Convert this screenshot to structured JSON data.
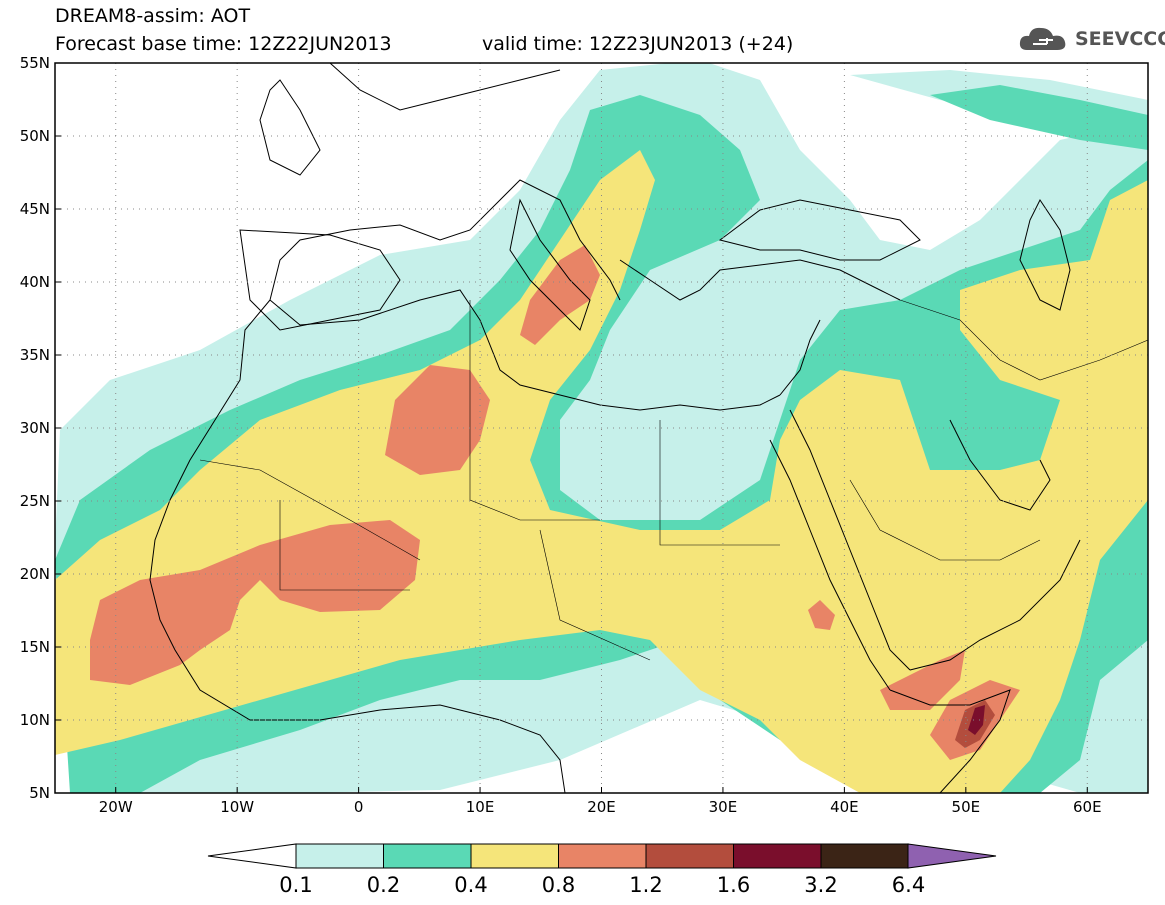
{
  "header": {
    "title": "DREAM8-assim: AOT",
    "base_time": "Forecast base time: 12Z22JUN2013",
    "valid_time": "valid time: 12Z23JUN2013 (+24)"
  },
  "logo": {
    "text": "SEEVCCC",
    "icon": "cloud-logo-icon"
  },
  "map": {
    "lon_range": [
      -25,
      65
    ],
    "lat_range": [
      5,
      55
    ],
    "lat_labels": [
      "55N",
      "50N",
      "45N",
      "40N",
      "35N",
      "30N",
      "25N",
      "20N",
      "15N",
      "10N",
      "5N"
    ],
    "lon_labels": [
      "20W",
      "10W",
      "0",
      "10E",
      "20E",
      "30E",
      "40E",
      "50E",
      "60E"
    ],
    "ocean_color": "#ffffff",
    "grid": true
  },
  "colorbar": {
    "labels": [
      "0.1",
      "0.2",
      "0.4",
      "0.8",
      "1.2",
      "1.6",
      "3.2",
      "6.4"
    ],
    "colors": [
      "#c6f0ea",
      "#5ad9b5",
      "#f5e57a",
      "#e88466",
      "#b34d3d",
      "#7a0e2c",
      "#3b2416",
      "#8f61b0"
    ]
  },
  "legend_colors": {
    "c01": "#c6f0ea",
    "c02": "#5ad9b5",
    "c04": "#f5e57a",
    "c08": "#e88466",
    "c12": "#b34d3d",
    "c16": "#7a0e2c"
  }
}
